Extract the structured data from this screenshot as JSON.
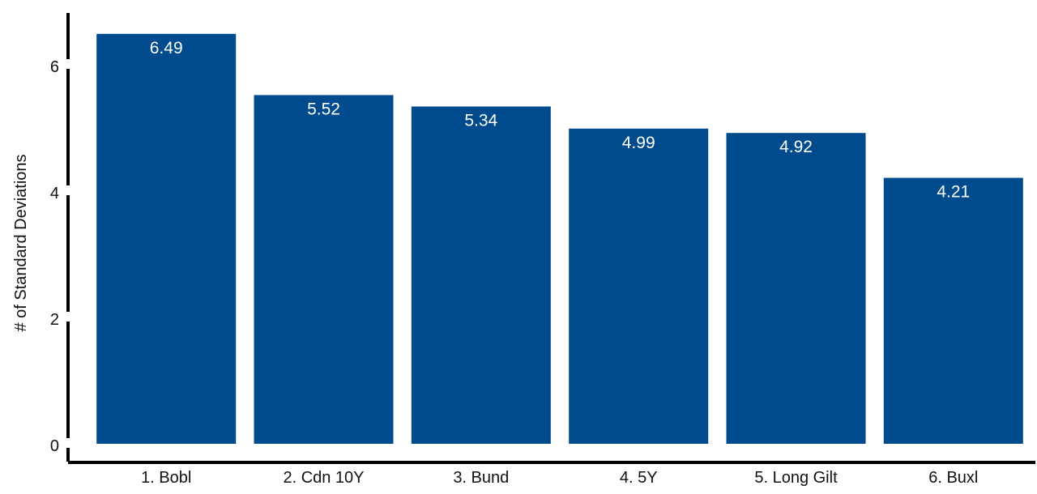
{
  "chart_data": {
    "type": "bar",
    "title": "",
    "xlabel": "",
    "ylabel": "# of Standard Deviations",
    "ylim": [
      0,
      6.8
    ],
    "yticks": [
      0,
      2,
      4,
      6
    ],
    "grid": false,
    "bar_color": "#004B8D",
    "categories": [
      "1. Bobl",
      "2. Cdn 10Y",
      "3. Bund",
      "4. 5Y",
      "5. Long Gilt",
      "6. Buxl"
    ],
    "values": [
      6.49,
      5.52,
      5.34,
      4.99,
      4.92,
      4.21
    ],
    "value_labels": [
      "6.49",
      "5.52",
      "5.34",
      "4.99",
      "4.92",
      "4.21"
    ]
  }
}
